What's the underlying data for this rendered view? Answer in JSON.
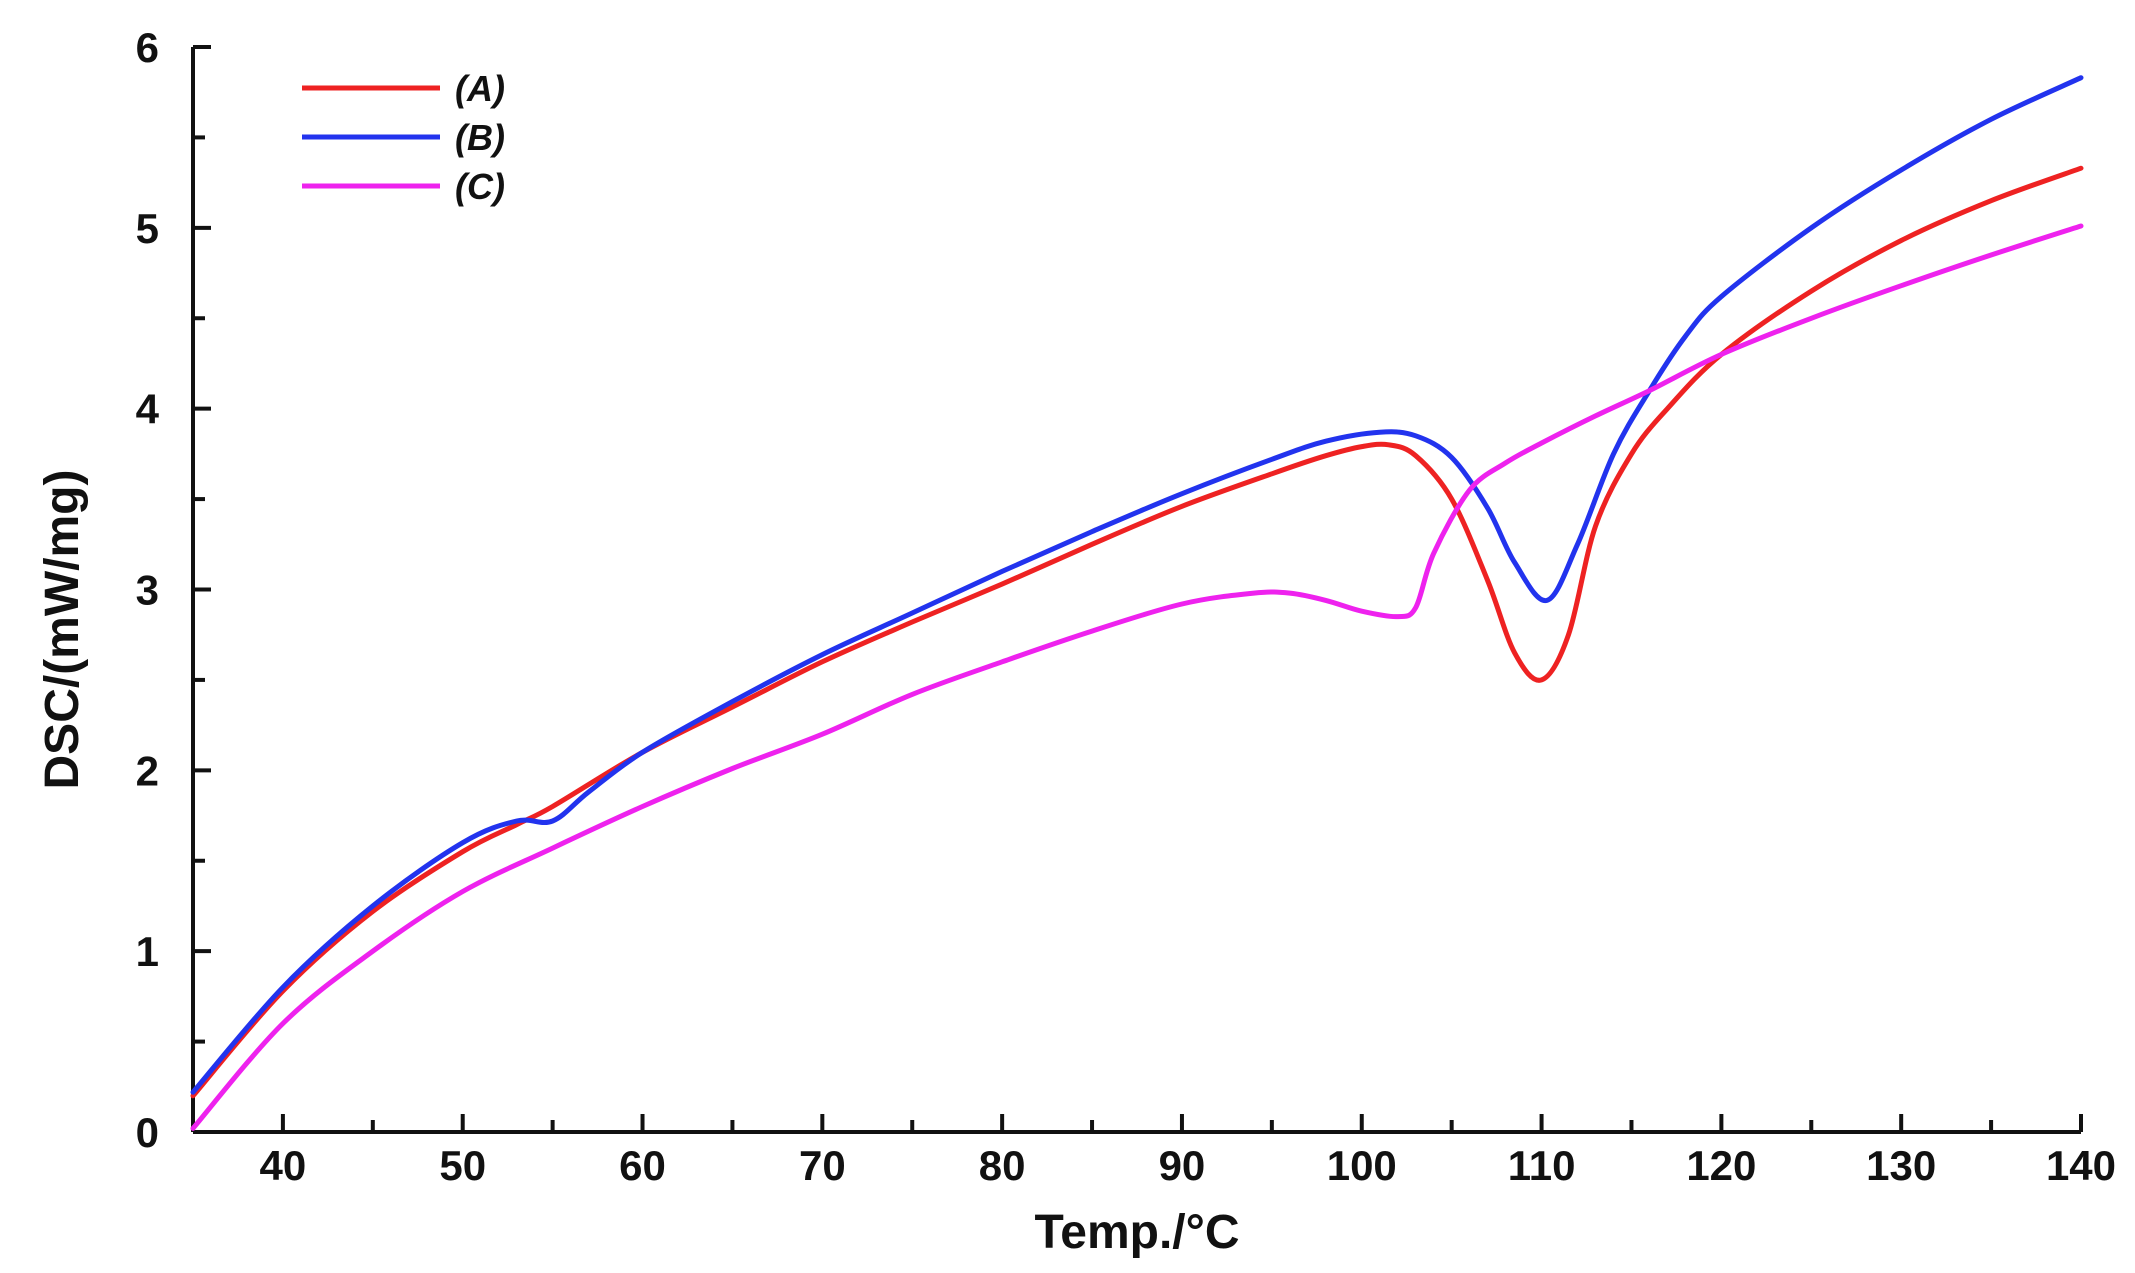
{
  "chart_data": {
    "type": "line",
    "title": "",
    "xlabel": "Temp./°C",
    "ylabel": "DSC/(mW/mg)",
    "xlim": [
      35,
      140
    ],
    "ylim": [
      0,
      6
    ],
    "xticks": [
      40,
      50,
      60,
      70,
      80,
      90,
      100,
      110,
      120,
      130,
      140
    ],
    "yticks": [
      0,
      1,
      2,
      3,
      4,
      5,
      6
    ],
    "legend_position": "top-left",
    "grid": false,
    "series": [
      {
        "name": "(A)",
        "color": "#ee2222",
        "x": [
          35,
          40,
          45,
          50,
          53,
          55,
          60,
          65,
          70,
          75,
          80,
          85,
          90,
          95,
          98,
          100,
          101.5,
          103,
          105,
          107,
          108.5,
          110,
          111.5,
          113,
          115,
          117,
          120,
          125,
          130,
          135,
          140
        ],
        "y": [
          0.2,
          0.78,
          1.22,
          1.55,
          1.7,
          1.8,
          2.1,
          2.35,
          2.6,
          2.82,
          3.03,
          3.25,
          3.46,
          3.64,
          3.74,
          3.79,
          3.8,
          3.74,
          3.5,
          3.05,
          2.65,
          2.5,
          2.75,
          3.35,
          3.75,
          4.0,
          4.3,
          4.65,
          4.93,
          5.15,
          5.33
        ]
      },
      {
        "name": "(B)",
        "color": "#2233ee",
        "x": [
          35,
          40,
          45,
          50,
          53,
          55,
          57,
          60,
          65,
          70,
          75,
          80,
          85,
          90,
          95,
          98,
          101,
          103,
          105,
          107,
          108.5,
          110.3,
          112,
          114,
          116,
          118,
          120,
          125,
          130,
          135,
          140
        ],
        "y": [
          0.22,
          0.8,
          1.25,
          1.6,
          1.72,
          1.72,
          1.88,
          2.1,
          2.38,
          2.64,
          2.87,
          3.1,
          3.32,
          3.53,
          3.72,
          3.82,
          3.87,
          3.85,
          3.73,
          3.45,
          3.15,
          2.94,
          3.25,
          3.75,
          4.1,
          4.4,
          4.62,
          5.0,
          5.32,
          5.6,
          5.83
        ]
      },
      {
        "name": "(C)",
        "color": "#ee22ee",
        "x": [
          35,
          40,
          45,
          50,
          55,
          60,
          65,
          70,
          75,
          80,
          85,
          90,
          94,
          96,
          98,
          100,
          102,
          103,
          104,
          106,
          108,
          110,
          113,
          116,
          120,
          125,
          130,
          135,
          140
        ],
        "y": [
          0.02,
          0.6,
          1.0,
          1.33,
          1.57,
          1.8,
          2.01,
          2.2,
          2.42,
          2.6,
          2.77,
          2.92,
          2.98,
          2.98,
          2.94,
          2.88,
          2.85,
          2.9,
          3.2,
          3.55,
          3.7,
          3.81,
          3.96,
          4.1,
          4.3,
          4.5,
          4.68,
          4.85,
          5.01
        ]
      }
    ]
  }
}
